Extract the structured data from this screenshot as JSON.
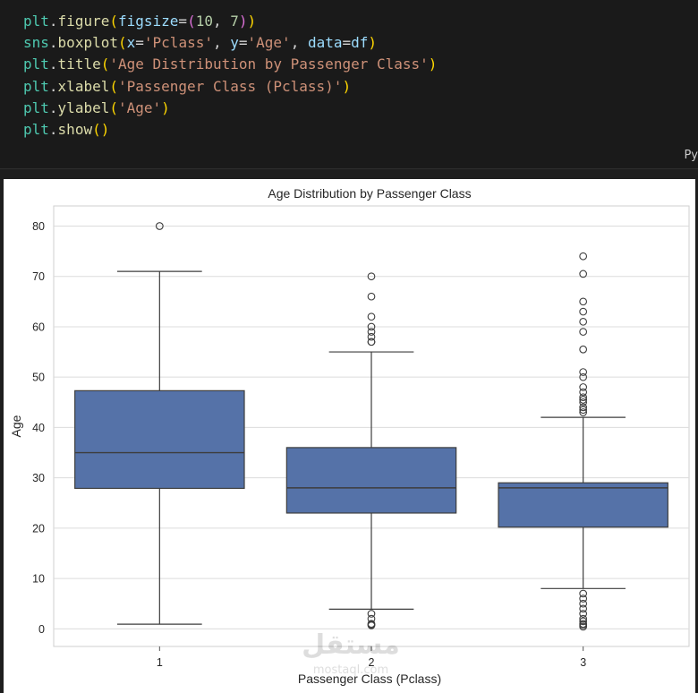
{
  "code": {
    "lines": [
      [
        {
          "t": "plt",
          "c": "var"
        },
        {
          "t": ".",
          "c": "punct"
        },
        {
          "t": "figure",
          "c": "fn"
        },
        {
          "t": "(",
          "c": "paren"
        },
        {
          "t": "figsize",
          "c": "arg"
        },
        {
          "t": "=",
          "c": "punct"
        },
        {
          "t": "(",
          "c": "paren2"
        },
        {
          "t": "10",
          "c": "num"
        },
        {
          "t": ", ",
          "c": "punct"
        },
        {
          "t": "7",
          "c": "num"
        },
        {
          "t": ")",
          "c": "paren2"
        },
        {
          "t": ")",
          "c": "paren"
        }
      ],
      [
        {
          "t": "sns",
          "c": "var"
        },
        {
          "t": ".",
          "c": "punct"
        },
        {
          "t": "boxplot",
          "c": "fn"
        },
        {
          "t": "(",
          "c": "paren"
        },
        {
          "t": "x",
          "c": "arg"
        },
        {
          "t": "=",
          "c": "punct"
        },
        {
          "t": "'Pclass'",
          "c": "str"
        },
        {
          "t": ", ",
          "c": "punct"
        },
        {
          "t": "y",
          "c": "arg"
        },
        {
          "t": "=",
          "c": "punct"
        },
        {
          "t": "'Age'",
          "c": "str"
        },
        {
          "t": ", ",
          "c": "punct"
        },
        {
          "t": "data",
          "c": "arg"
        },
        {
          "t": "=",
          "c": "punct"
        },
        {
          "t": "df",
          "c": "arg"
        },
        {
          "t": ")",
          "c": "paren"
        }
      ],
      [
        {
          "t": "plt",
          "c": "var"
        },
        {
          "t": ".",
          "c": "punct"
        },
        {
          "t": "title",
          "c": "fn"
        },
        {
          "t": "(",
          "c": "paren"
        },
        {
          "t": "'Age Distribution by Passenger Class'",
          "c": "str"
        },
        {
          "t": ")",
          "c": "paren"
        }
      ],
      [
        {
          "t": "plt",
          "c": "var"
        },
        {
          "t": ".",
          "c": "punct"
        },
        {
          "t": "xlabel",
          "c": "fn"
        },
        {
          "t": "(",
          "c": "paren"
        },
        {
          "t": "'Passenger Class (Pclass)'",
          "c": "str"
        },
        {
          "t": ")",
          "c": "paren"
        }
      ],
      [
        {
          "t": "plt",
          "c": "var"
        },
        {
          "t": ".",
          "c": "punct"
        },
        {
          "t": "ylabel",
          "c": "fn"
        },
        {
          "t": "(",
          "c": "paren"
        },
        {
          "t": "'Age'",
          "c": "str"
        },
        {
          "t": ")",
          "c": "paren"
        }
      ],
      [
        {
          "t": "plt",
          "c": "var"
        },
        {
          "t": ".",
          "c": "punct"
        },
        {
          "t": "show",
          "c": "fn"
        },
        {
          "t": "(",
          "c": "paren"
        },
        {
          "t": ")",
          "c": "paren"
        }
      ]
    ],
    "language_tag": "Py"
  },
  "colors": {
    "box_fill": "#5572a8",
    "box_edge": "#3d3d3d",
    "grid": "#dcdcdc",
    "axis_text": "#262626"
  },
  "watermark": {
    "arabic": "مستقل",
    "latin": "mostaql.com"
  },
  "chart_data": {
    "type": "box",
    "title": "Age Distribution by Passenger Class",
    "xlabel": "Passenger Class (Pclass)",
    "ylabel": "Age",
    "categories": [
      "1",
      "2",
      "3"
    ],
    "ylim": [
      -3.5,
      84
    ],
    "yticks": [
      0,
      10,
      20,
      30,
      40,
      50,
      60,
      70,
      80
    ],
    "grid": true,
    "boxes": [
      {
        "category": "1",
        "whisker_low": 0.92,
        "q1": 27.9,
        "median": 35,
        "q3": 47.3,
        "whisker_high": 71,
        "outliers": [
          80
        ]
      },
      {
        "category": "2",
        "whisker_low": 3.9,
        "q1": 23,
        "median": 28,
        "q3": 36,
        "whisker_high": 55,
        "outliers": [
          0.67,
          0.83,
          1,
          2,
          3,
          57,
          57,
          58,
          59,
          60,
          62,
          66,
          70
        ]
      },
      {
        "category": "3",
        "whisker_low": 8,
        "q1": 20.2,
        "median": 28,
        "q3": 29,
        "whisker_high": 42,
        "outliers": [
          0.42,
          0.75,
          1,
          1.5,
          2,
          3,
          4,
          5,
          6,
          7,
          43,
          43.5,
          44,
          45,
          45.5,
          46,
          47,
          48,
          50,
          51,
          55.5,
          59,
          61,
          63,
          65,
          70.5,
          74
        ]
      }
    ]
  }
}
